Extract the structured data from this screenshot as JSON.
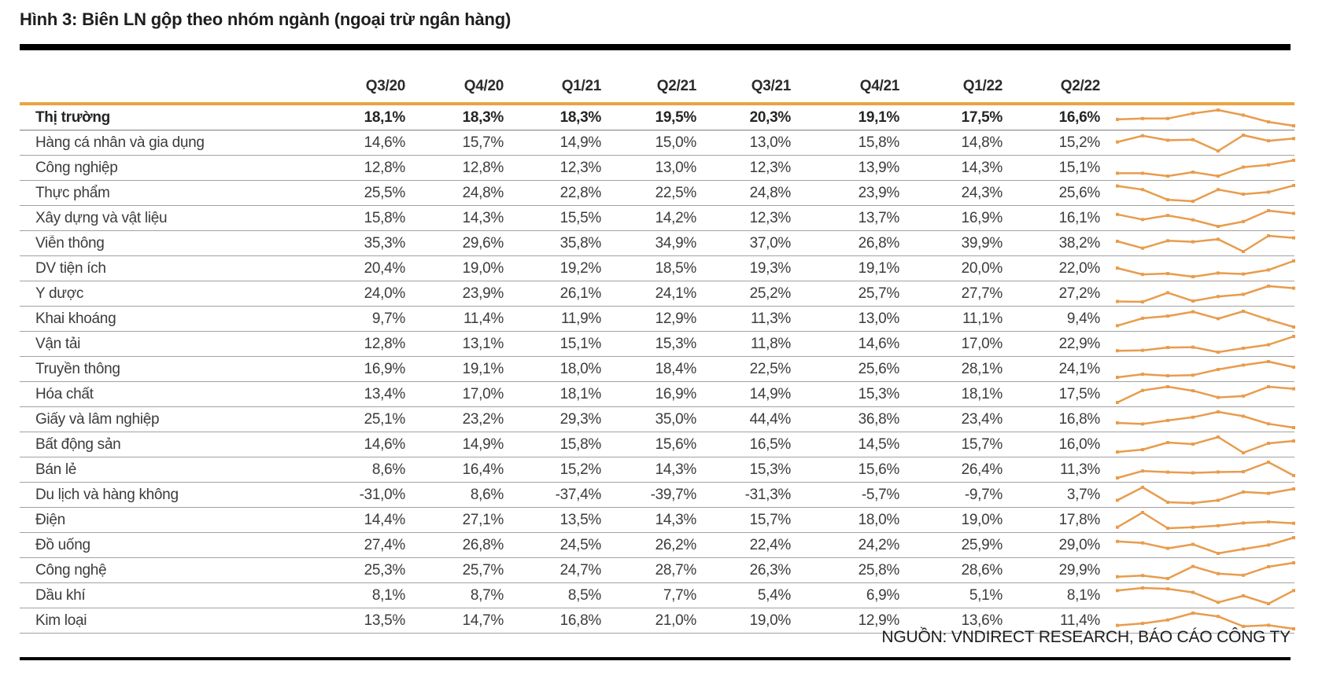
{
  "page": {
    "title": "Hình 3: Biên LN gộp theo nhóm ngành (ngoại trừ ngân hàng)",
    "source_note": "NGUỒN: VNDIRECT RESEARCH, BÁO CÁO CÔNG TY"
  },
  "chart_data": {
    "type": "table",
    "title": "Biên LN gộp theo nhóm ngành (ngoại trừ ngân hàng)",
    "value_unit": "%",
    "number_format": "one_decimal_comma_percent",
    "sparkline": {
      "present": true,
      "color": "#E89C4D",
      "per_row_scaling": "min-max"
    },
    "colors": {
      "accent_orange": "#EBA33F",
      "rule_black": "#000000",
      "separator": "#A2A2A2",
      "text": "#3C3C3C"
    },
    "columns": [
      "Q3/20",
      "Q4/20",
      "Q1/21",
      "Q2/21",
      "Q3/21",
      "Q4/21",
      "Q1/22",
      "Q2/22"
    ],
    "rows": [
      {
        "label": "Thị trường",
        "bold": true,
        "values": [
          18.1,
          18.3,
          18.3,
          19.5,
          20.3,
          19.1,
          17.5,
          16.6
        ]
      },
      {
        "label": "Hàng cá nhân và gia dụng",
        "bold": false,
        "values": [
          14.6,
          15.7,
          14.9,
          15.0,
          13.0,
          15.8,
          14.8,
          15.2
        ]
      },
      {
        "label": "Công nghiệp",
        "bold": false,
        "values": [
          12.8,
          12.8,
          12.3,
          13.0,
          12.3,
          13.9,
          14.3,
          15.1
        ]
      },
      {
        "label": "Thực phẩm",
        "bold": false,
        "values": [
          25.5,
          24.8,
          22.8,
          22.5,
          24.8,
          23.9,
          24.3,
          25.6
        ]
      },
      {
        "label": "Xây dựng và vật liệu",
        "bold": false,
        "values": [
          15.8,
          14.3,
          15.5,
          14.2,
          12.3,
          13.7,
          16.9,
          16.1
        ]
      },
      {
        "label": "Viễn thông",
        "bold": false,
        "values": [
          35.3,
          29.6,
          35.8,
          34.9,
          37.0,
          26.8,
          39.9,
          38.2
        ]
      },
      {
        "label": "DV tiện ích",
        "bold": false,
        "values": [
          20.4,
          19.0,
          19.2,
          18.5,
          19.3,
          19.1,
          20.0,
          22.0
        ]
      },
      {
        "label": "Y dược",
        "bold": false,
        "values": [
          24.0,
          23.9,
          26.1,
          24.1,
          25.2,
          25.7,
          27.7,
          27.2
        ]
      },
      {
        "label": "Khai khoáng",
        "bold": false,
        "values": [
          9.7,
          11.4,
          11.9,
          12.9,
          11.3,
          13.0,
          11.1,
          9.4
        ]
      },
      {
        "label": "Vận tải",
        "bold": false,
        "values": [
          12.8,
          13.1,
          15.1,
          15.3,
          11.8,
          14.6,
          17.0,
          22.9
        ]
      },
      {
        "label": "Truyền thông",
        "bold": false,
        "values": [
          16.9,
          19.1,
          18.0,
          18.4,
          22.5,
          25.6,
          28.1,
          24.1
        ]
      },
      {
        "label": "Hóa chất",
        "bold": false,
        "values": [
          13.4,
          17.0,
          18.1,
          16.9,
          14.9,
          15.3,
          18.1,
          17.5
        ]
      },
      {
        "label": "Giấy và lâm nghiệp",
        "bold": false,
        "values": [
          25.1,
          23.2,
          29.3,
          35.0,
          44.4,
          36.8,
          23.4,
          16.8
        ]
      },
      {
        "label": "Bất động sản",
        "bold": false,
        "values": [
          14.6,
          14.9,
          15.8,
          15.6,
          16.5,
          14.5,
          15.7,
          16.0
        ]
      },
      {
        "label": "Bán lẻ",
        "bold": false,
        "values": [
          8.6,
          16.4,
          15.2,
          14.3,
          15.3,
          15.6,
          26.4,
          11.3
        ]
      },
      {
        "label": "Du lịch và hàng không",
        "bold": false,
        "values": [
          -31.0,
          8.6,
          -37.4,
          -39.7,
          -31.3,
          -5.7,
          -9.7,
          3.7
        ]
      },
      {
        "label": "Điện",
        "bold": false,
        "values": [
          14.4,
          27.1,
          13.5,
          14.3,
          15.7,
          18.0,
          19.0,
          17.8
        ]
      },
      {
        "label": "Đồ uống",
        "bold": false,
        "values": [
          27.4,
          26.8,
          24.5,
          26.2,
          22.4,
          24.2,
          25.9,
          29.0
        ]
      },
      {
        "label": "Công nghệ",
        "bold": false,
        "values": [
          25.3,
          25.7,
          24.7,
          28.7,
          26.3,
          25.8,
          28.6,
          29.9
        ]
      },
      {
        "label": "Dầu khí",
        "bold": false,
        "values": [
          8.1,
          8.7,
          8.5,
          7.7,
          5.4,
          6.9,
          5.1,
          8.1
        ]
      },
      {
        "label": "Kim loại",
        "bold": false,
        "values": [
          13.5,
          14.7,
          16.8,
          21.0,
          19.0,
          12.9,
          13.6,
          11.4
        ]
      }
    ]
  }
}
